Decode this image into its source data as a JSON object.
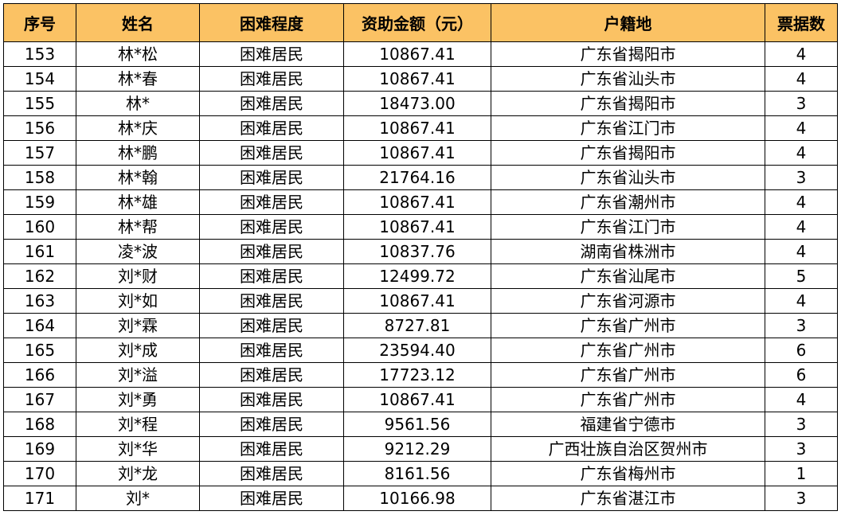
{
  "colors": {
    "header_bg": "#fbc264",
    "border": "#000000",
    "text": "#000000"
  },
  "table": {
    "headers": [
      "序号",
      "姓名",
      "困难程度",
      "资助金额（元）",
      "户籍地",
      "票据数"
    ],
    "rows": [
      [
        "153",
        "林*松",
        "困难居民",
        "10867.41",
        "广东省揭阳市",
        "4"
      ],
      [
        "154",
        "林*春",
        "困难居民",
        "10867.41",
        "广东省汕头市",
        "4"
      ],
      [
        "155",
        "林*",
        "困难居民",
        "18473.00",
        "广东省揭阳市",
        "3"
      ],
      [
        "156",
        "林*庆",
        "困难居民",
        "10867.41",
        "广东省江门市",
        "4"
      ],
      [
        "157",
        "林*鹏",
        "困难居民",
        "10867.41",
        "广东省揭阳市",
        "4"
      ],
      [
        "158",
        "林*翰",
        "困难居民",
        "21764.16",
        "广东省汕头市",
        "3"
      ],
      [
        "159",
        "林*雄",
        "困难居民",
        "10867.41",
        "广东省潮州市",
        "4"
      ],
      [
        "160",
        "林*帮",
        "困难居民",
        "10867.41",
        "广东省江门市",
        "4"
      ],
      [
        "161",
        "凌*波",
        "困难居民",
        "10837.76",
        "湖南省株洲市",
        "4"
      ],
      [
        "162",
        "刘*财",
        "困难居民",
        "12499.72",
        "广东省汕尾市",
        "5"
      ],
      [
        "163",
        "刘*如",
        "困难居民",
        "10867.41",
        "广东省河源市",
        "4"
      ],
      [
        "164",
        "刘*霖",
        "困难居民",
        "8727.81",
        "广东省广州市",
        "3"
      ],
      [
        "165",
        "刘*成",
        "困难居民",
        "23594.40",
        "广东省广州市",
        "6"
      ],
      [
        "166",
        "刘*溢",
        "困难居民",
        "17723.12",
        "广东省广州市",
        "6"
      ],
      [
        "167",
        "刘*勇",
        "困难居民",
        "10867.41",
        "广东省广州市",
        "4"
      ],
      [
        "168",
        "刘*程",
        "困难居民",
        "9561.56",
        "福建省宁德市",
        "3"
      ],
      [
        "169",
        "刘*华",
        "困难居民",
        "9212.29",
        "广西壮族自治区贺州市",
        "3"
      ],
      [
        "170",
        "刘*龙",
        "困难居民",
        "8161.56",
        "广东省梅州市",
        "1"
      ],
      [
        "171",
        "刘*",
        "困难居民",
        "10166.98",
        "广东省湛江市",
        "3"
      ]
    ]
  }
}
